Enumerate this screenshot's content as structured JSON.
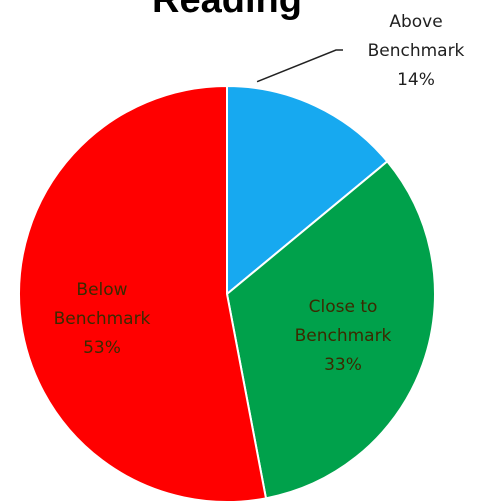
{
  "chart_data": {
    "type": "pie",
    "title": "Reading",
    "slices": [
      {
        "name": "Above Benchmark",
        "label_lines": [
          "Above",
          "Benchmark"
        ],
        "value": 14,
        "value_label": "14%",
        "color": "#17a9f0"
      },
      {
        "name": "Close to Benchmark",
        "label_lines": [
          "Close to",
          "Benchmark"
        ],
        "value": 33,
        "value_label": "33%",
        "color": "#00a14b"
      },
      {
        "name": "Below Benchmark",
        "label_lines": [
          "Below",
          "Benchmark"
        ],
        "value": 53,
        "value_label": "53%",
        "color": "#ff0000"
      }
    ],
    "label_colors": {
      "inside": "#3b2a00",
      "outside": "#1f1f1f"
    }
  }
}
